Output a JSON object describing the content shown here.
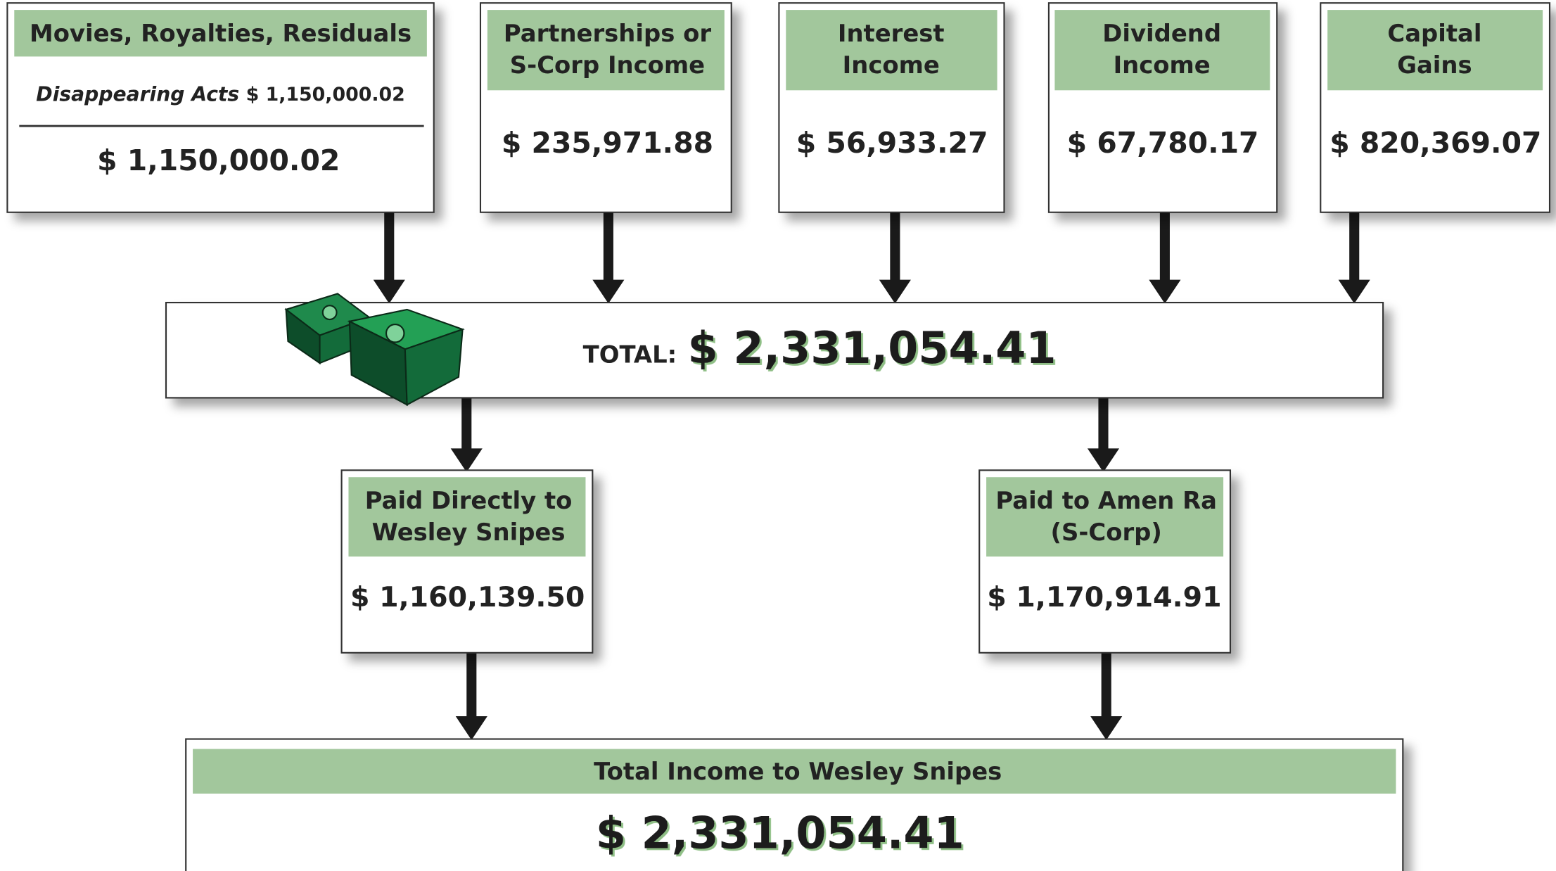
{
  "sources": [
    {
      "title": [
        "Movies, Royalties, Residuals"
      ],
      "items": [
        {
          "label": "Disappearing Acts",
          "amount": "$ 1,150,000.02"
        }
      ],
      "amount": "$ 1,150,000.02"
    },
    {
      "title": [
        "Partnerships or",
        "S-Corp Income"
      ],
      "amount": "$ 235,971.88"
    },
    {
      "title": [
        "Interest",
        "Income"
      ],
      "amount": "$ 56,933.27"
    },
    {
      "title": [
        "Dividend",
        "Income"
      ],
      "amount": "$ 67,780.17"
    },
    {
      "title": [
        "Capital",
        "Gains"
      ],
      "amount": "$ 820,369.07"
    }
  ],
  "total": {
    "label": "TOTAL:",
    "amount": "$ 2,331,054.41"
  },
  "payments": [
    {
      "title": [
        "Paid Directly to",
        "Wesley Snipes"
      ],
      "amount": "$ 1,160,139.50"
    },
    {
      "title": [
        "Paid to Amen Ra",
        "(S-Corp)"
      ],
      "amount": "$ 1,170,914.91"
    }
  ],
  "final": {
    "title": "Total Income to Wesley Snipes",
    "amount": "$ 2,331,054.41"
  }
}
